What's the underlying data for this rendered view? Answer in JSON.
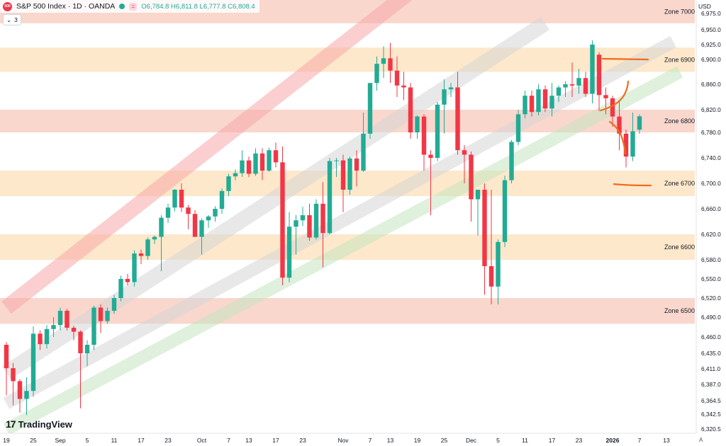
{
  "header": {
    "symbol_logo": "500",
    "title": "S&P 500 Index · 1D · OANDA",
    "open": "O6,784.8",
    "high": "H6,811.8",
    "low": "L6,777.8",
    "close": "C6,808.4",
    "indicator_count": "3",
    "currency": "USD",
    "scale_mode": "A"
  },
  "branding": "TradingView",
  "colors": {
    "up": "#22ab94",
    "down": "#f23645",
    "zone_red": "#f4b7a4",
    "zone_orange": "#fbd9a8",
    "channel_red": "#f7a7a7",
    "channel_gray": "#d6d6d6",
    "channel_green": "#c4e4c0",
    "drawing": "#ef6c1a"
  },
  "chart_data": {
    "type": "candlestick",
    "yaxis": {
      "ticks": [
        6320.5,
        6342.5,
        6364.5,
        6387.0,
        6411.0,
        6435.0,
        6460.0,
        6490.0,
        6520.0,
        6550.0,
        6580.0,
        6620.0,
        6660.0,
        6700.0,
        6740.0,
        6780.0,
        6820.0,
        6860.0,
        6900.0,
        6925.0,
        6950.0,
        6975.0
      ],
      "tick_labels": [
        "6,320.5",
        "6,342.5",
        "6,364.5",
        "6,387.0",
        "6,411.0",
        "6,435.0",
        "6,460.0",
        "6,490.0",
        "6,520.0",
        "6,550.0",
        "6,580.0",
        "6,620.0",
        "6,660.0",
        "6,700.0",
        "6,740.0",
        "6,780.0",
        "6,820.0",
        "6,860.0",
        "6,900.0",
        "6,925.0",
        "6,950.0",
        "6,975.0"
      ]
    },
    "xaxis": {
      "labels": [
        {
          "text": "19",
          "i": 0
        },
        {
          "text": "25",
          "i": 4
        },
        {
          "text": "Sep",
          "i": 8
        },
        {
          "text": "5",
          "i": 12
        },
        {
          "text": "11",
          "i": 16
        },
        {
          "text": "17",
          "i": 20
        },
        {
          "text": "23",
          "i": 24
        },
        {
          "text": "Oct",
          "i": 29
        },
        {
          "text": "7",
          "i": 33
        },
        {
          "text": "13",
          "i": 36
        },
        {
          "text": "17",
          "i": 40
        },
        {
          "text": "23",
          "i": 44
        },
        {
          "text": "Nov",
          "i": 50
        },
        {
          "text": "7",
          "i": 54
        },
        {
          "text": "13",
          "i": 57
        },
        {
          "text": "19",
          "i": 61
        },
        {
          "text": "25",
          "i": 65
        },
        {
          "text": "Dec",
          "i": 69
        },
        {
          "text": "5",
          "i": 73
        },
        {
          "text": "11",
          "i": 77
        },
        {
          "text": "17",
          "i": 81
        },
        {
          "text": "23",
          "i": 85
        },
        {
          "text": "2026",
          "i": 90
        },
        {
          "text": "7",
          "i": 94
        },
        {
          "text": "13",
          "i": 98
        }
      ]
    },
    "zones": [
      {
        "label": "Zone 7000",
        "low": 6960,
        "high": 7010,
        "style": "red"
      },
      {
        "label": "Zone 6900",
        "low": 6880,
        "high": 6920,
        "style": "orange"
      },
      {
        "label": "Zone 6800",
        "low": 6780,
        "high": 6820,
        "style": "red"
      },
      {
        "label": "Zone 6700",
        "low": 6680,
        "high": 6720,
        "style": "orange"
      },
      {
        "label": "Zone 6600",
        "low": 6580,
        "high": 6620,
        "style": "orange"
      },
      {
        "label": "Zone 6500",
        "low": 6480,
        "high": 6520,
        "style": "red"
      }
    ],
    "candles": [
      {
        "o": 6448,
        "h": 6452,
        "l": 6372,
        "c": 6412
      },
      {
        "o": 6412,
        "h": 6420,
        "l": 6357,
        "c": 6392
      },
      {
        "o": 6392,
        "h": 6395,
        "l": 6345,
        "c": 6367
      },
      {
        "o": 6367,
        "h": 6398,
        "l": 6341,
        "c": 6378
      },
      {
        "o": 6378,
        "h": 6476,
        "l": 6370,
        "c": 6465
      },
      {
        "o": 6465,
        "h": 6470,
        "l": 6440,
        "c": 6449
      },
      {
        "o": 6449,
        "h": 6478,
        "l": 6442,
        "c": 6472
      },
      {
        "o": 6472,
        "h": 6490,
        "l": 6460,
        "c": 6478
      },
      {
        "o": 6478,
        "h": 6505,
        "l": 6470,
        "c": 6500
      },
      {
        "o": 6500,
        "h": 6503,
        "l": 6470,
        "c": 6474
      },
      {
        "o": 6474,
        "h": 6477,
        "l": 6455,
        "c": 6468
      },
      {
        "o": 6468,
        "h": 6470,
        "l": 6352,
        "c": 6435
      },
      {
        "o": 6435,
        "h": 6455,
        "l": 6415,
        "c": 6448
      },
      {
        "o": 6448,
        "h": 6508,
        "l": 6440,
        "c": 6505
      },
      {
        "o": 6505,
        "h": 6510,
        "l": 6466,
        "c": 6484
      },
      {
        "o": 6484,
        "h": 6505,
        "l": 6480,
        "c": 6500
      },
      {
        "o": 6500,
        "h": 6525,
        "l": 6495,
        "c": 6520
      },
      {
        "o": 6520,
        "h": 6555,
        "l": 6515,
        "c": 6550
      },
      {
        "o": 6550,
        "h": 6558,
        "l": 6540,
        "c": 6545
      },
      {
        "o": 6545,
        "h": 6595,
        "l": 6538,
        "c": 6590
      },
      {
        "o": 6590,
        "h": 6596,
        "l": 6573,
        "c": 6586
      },
      {
        "o": 6586,
        "h": 6615,
        "l": 6580,
        "c": 6612
      },
      {
        "o": 6612,
        "h": 6618,
        "l": 6605,
        "c": 6616
      },
      {
        "o": 6616,
        "h": 6650,
        "l": 6562,
        "c": 6646
      },
      {
        "o": 6646,
        "h": 6668,
        "l": 6638,
        "c": 6662
      },
      {
        "o": 6662,
        "h": 6691,
        "l": 6656,
        "c": 6690
      },
      {
        "o": 6690,
        "h": 6700,
        "l": 6655,
        "c": 6662
      },
      {
        "o": 6662,
        "h": 6666,
        "l": 6628,
        "c": 6652
      },
      {
        "o": 6652,
        "h": 6658,
        "l": 6618,
        "c": 6616
      },
      {
        "o": 6616,
        "h": 6645,
        "l": 6588,
        "c": 6642
      },
      {
        "o": 6642,
        "h": 6650,
        "l": 6630,
        "c": 6648
      },
      {
        "o": 6648,
        "h": 6664,
        "l": 6640,
        "c": 6660
      },
      {
        "o": 6660,
        "h": 6692,
        "l": 6652,
        "c": 6688
      },
      {
        "o": 6688,
        "h": 6715,
        "l": 6680,
        "c": 6711
      },
      {
        "o": 6711,
        "h": 6722,
        "l": 6705,
        "c": 6716
      },
      {
        "o": 6716,
        "h": 6752,
        "l": 6710,
        "c": 6736
      },
      {
        "o": 6736,
        "h": 6742,
        "l": 6710,
        "c": 6715
      },
      {
        "o": 6715,
        "h": 6755,
        "l": 6712,
        "c": 6747
      },
      {
        "o": 6747,
        "h": 6755,
        "l": 6705,
        "c": 6720
      },
      {
        "o": 6720,
        "h": 6756,
        "l": 6718,
        "c": 6752
      },
      {
        "o": 6752,
        "h": 6764,
        "l": 6725,
        "c": 6733
      },
      {
        "o": 6733,
        "h": 6758,
        "l": 6540,
        "c": 6552
      },
      {
        "o": 6552,
        "h": 6655,
        "l": 6545,
        "c": 6632
      },
      {
        "o": 6632,
        "h": 6650,
        "l": 6588,
        "c": 6642
      },
      {
        "o": 6642,
        "h": 6663,
        "l": 6633,
        "c": 6650
      },
      {
        "o": 6650,
        "h": 6668,
        "l": 6610,
        "c": 6615
      },
      {
        "o": 6615,
        "h": 6675,
        "l": 6612,
        "c": 6668
      },
      {
        "o": 6668,
        "h": 6702,
        "l": 6568,
        "c": 6622
      },
      {
        "o": 6622,
        "h": 6740,
        "l": 6620,
        "c": 6735
      },
      {
        "o": 6735,
        "h": 6740,
        "l": 6710,
        "c": 6736
      },
      {
        "o": 6736,
        "h": 6745,
        "l": 6655,
        "c": 6690
      },
      {
        "o": 6690,
        "h": 6742,
        "l": 6682,
        "c": 6739
      },
      {
        "o": 6739,
        "h": 6752,
        "l": 6695,
        "c": 6720
      },
      {
        "o": 6720,
        "h": 6815,
        "l": 6718,
        "c": 6778
      },
      {
        "o": 6778,
        "h": 6862,
        "l": 6770,
        "c": 6862
      },
      {
        "o": 6862,
        "h": 6905,
        "l": 6850,
        "c": 6893
      },
      {
        "o": 6893,
        "h": 6922,
        "l": 6870,
        "c": 6902
      },
      {
        "o": 6902,
        "h": 6928,
        "l": 6862,
        "c": 6882
      },
      {
        "o": 6882,
        "h": 6905,
        "l": 6840,
        "c": 6858
      },
      {
        "o": 6858,
        "h": 6880,
        "l": 6835,
        "c": 6855
      },
      {
        "o": 6855,
        "h": 6862,
        "l": 6770,
        "c": 6780
      },
      {
        "o": 6780,
        "h": 6810,
        "l": 6770,
        "c": 6808
      },
      {
        "o": 6808,
        "h": 6812,
        "l": 6720,
        "c": 6745
      },
      {
        "o": 6745,
        "h": 6752,
        "l": 6650,
        "c": 6740
      },
      {
        "o": 6740,
        "h": 6832,
        "l": 6735,
        "c": 6828
      },
      {
        "o": 6828,
        "h": 6868,
        "l": 6778,
        "c": 6852
      },
      {
        "o": 6852,
        "h": 6862,
        "l": 6840,
        "c": 6855
      },
      {
        "o": 6855,
        "h": 6880,
        "l": 6745,
        "c": 6752
      },
      {
        "o": 6752,
        "h": 6760,
        "l": 6700,
        "c": 6745
      },
      {
        "o": 6745,
        "h": 6750,
        "l": 6640,
        "c": 6675
      },
      {
        "o": 6675,
        "h": 6685,
        "l": 6618,
        "c": 6690
      },
      {
        "o": 6690,
        "h": 6700,
        "l": 6525,
        "c": 6570
      },
      {
        "o": 6570,
        "h": 6690,
        "l": 6510,
        "c": 6538
      },
      {
        "o": 6538,
        "h": 6612,
        "l": 6510,
        "c": 6608
      },
      {
        "o": 6608,
        "h": 6712,
        "l": 6600,
        "c": 6705
      },
      {
        "o": 6705,
        "h": 6768,
        "l": 6700,
        "c": 6765
      },
      {
        "o": 6765,
        "h": 6820,
        "l": 6760,
        "c": 6812
      },
      {
        "o": 6812,
        "h": 6850,
        "l": 6805,
        "c": 6842
      },
      {
        "o": 6842,
        "h": 6850,
        "l": 6808,
        "c": 6816
      },
      {
        "o": 6816,
        "h": 6860,
        "l": 6810,
        "c": 6852
      },
      {
        "o": 6852,
        "h": 6858,
        "l": 6816,
        "c": 6822
      },
      {
        "o": 6822,
        "h": 6862,
        "l": 6808,
        "c": 6842
      },
      {
        "o": 6842,
        "h": 6858,
        "l": 6832,
        "c": 6855
      },
      {
        "o": 6855,
        "h": 6865,
        "l": 6840,
        "c": 6860
      },
      {
        "o": 6860,
        "h": 6895,
        "l": 6840,
        "c": 6858
      },
      {
        "o": 6858,
        "h": 6885,
        "l": 6845,
        "c": 6870
      },
      {
        "o": 6870,
        "h": 6880,
        "l": 6840,
        "c": 6845
      },
      {
        "o": 6845,
        "h": 6932,
        "l": 6830,
        "c": 6925
      },
      {
        "o": 6908,
        "h": 6912,
        "l": 6818,
        "c": 6843
      },
      {
        "o": 6843,
        "h": 6855,
        "l": 6812,
        "c": 6838
      },
      {
        "o": 6838,
        "h": 6842,
        "l": 6790,
        "c": 6808
      },
      {
        "o": 6808,
        "h": 6835,
        "l": 6752,
        "c": 6778
      },
      {
        "o": 6778,
        "h": 6785,
        "l": 6725,
        "c": 6742
      },
      {
        "o": 6742,
        "h": 6815,
        "l": 6735,
        "c": 6782
      },
      {
        "o": 6784.8,
        "h": 6811.8,
        "l": 6777.8,
        "c": 6808.4
      }
    ]
  }
}
